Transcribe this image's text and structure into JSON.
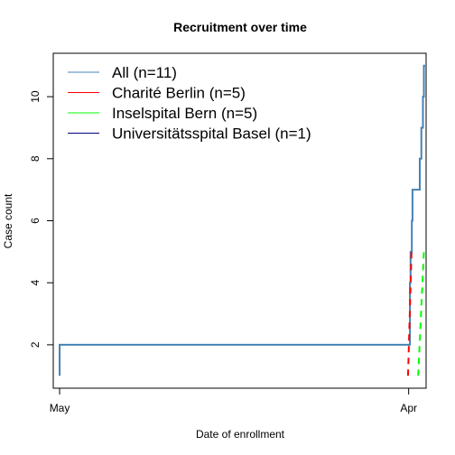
{
  "chart_data": {
    "type": "line",
    "title": "Recruitment over time",
    "xlabel": "Date of enrollment",
    "ylabel": "Case count",
    "x_ticks": [
      {
        "label": "May",
        "value": 0
      },
      {
        "label": "Apr",
        "value": 11
      }
    ],
    "y_ticks": [
      2,
      4,
      6,
      8,
      10
    ],
    "xlim": [
      -0.2,
      11.55
    ],
    "ylim": [
      0.6,
      11.4
    ],
    "grid": false,
    "legend_position": "top-left",
    "series": [
      {
        "name": "All (n=11)",
        "color": "#4682b4",
        "dash": "",
        "width": 2,
        "steps": [
          [
            0,
            1
          ],
          [
            0,
            2
          ],
          [
            11.0,
            2
          ],
          [
            11.04,
            4
          ],
          [
            11.06,
            5
          ],
          [
            11.1,
            6
          ],
          [
            11.12,
            7
          ],
          [
            11.3,
            7
          ],
          [
            11.35,
            8
          ],
          [
            11.4,
            9
          ],
          [
            11.45,
            10
          ],
          [
            11.48,
            11
          ],
          [
            11.52,
            11
          ]
        ]
      },
      {
        "name": "Charité Berlin  (n=5)",
        "color": "#ff0000",
        "dash": "7,6",
        "width": 2,
        "points": [
          [
            10.98,
            1
          ],
          [
            11.09,
            5
          ]
        ]
      },
      {
        "name": "Inselspital Bern  (n=5)",
        "color": "#00ff00",
        "dash": "7,6",
        "width": 2,
        "points": [
          [
            11.3,
            1
          ],
          [
            11.48,
            5
          ]
        ]
      },
      {
        "name": "Universitätsspital Basel  (n=1)",
        "color": "#000080",
        "dash": "",
        "width": 1,
        "points": []
      }
    ]
  }
}
